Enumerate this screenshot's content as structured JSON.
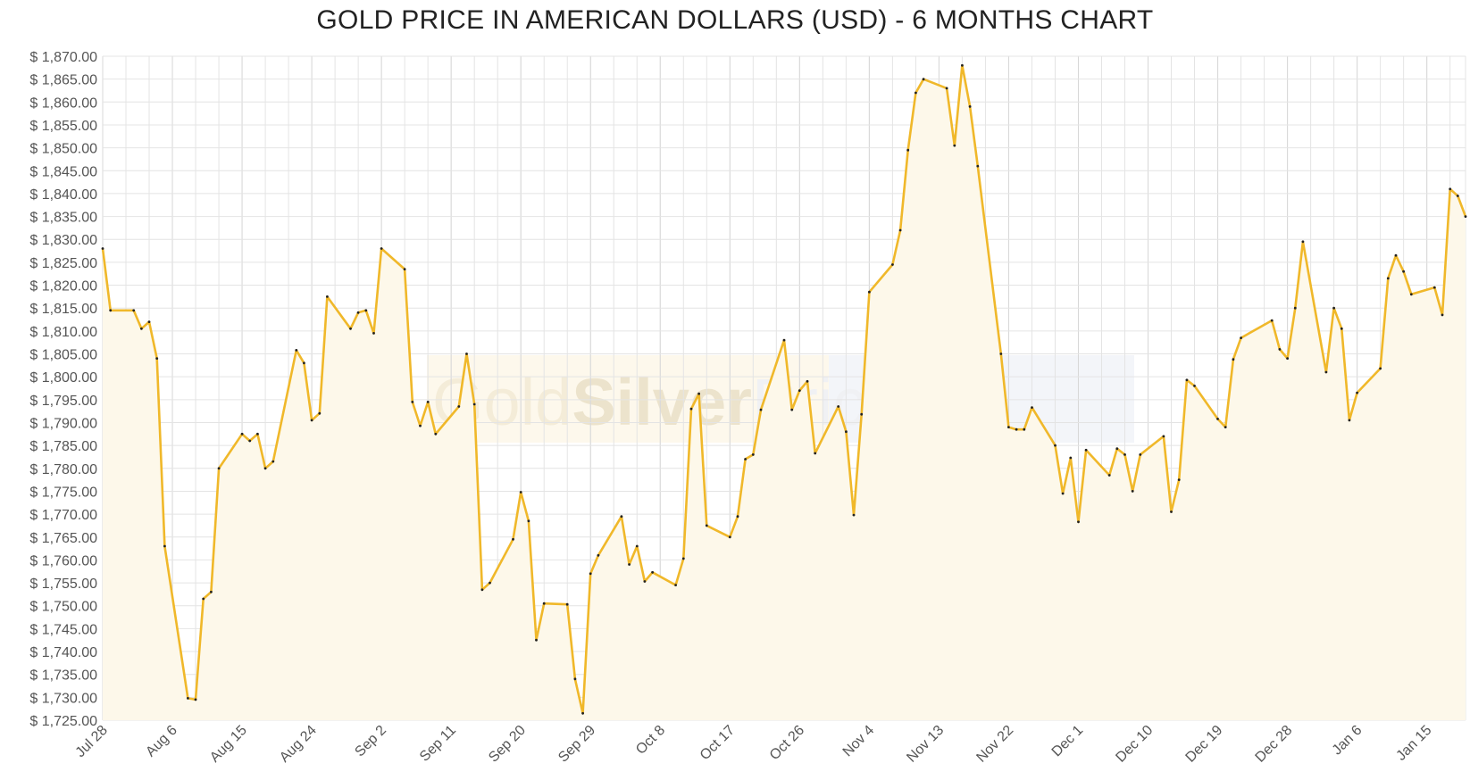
{
  "chart_data": {
    "type": "line",
    "title": "GOLD PRICE IN AMERICAN DOLLARS (USD) - 6 MONTHS CHART",
    "xlabel": "",
    "ylabel": "",
    "ylim": [
      1725,
      1870
    ],
    "y_tick_step": 5,
    "y_tick_prefix": "$ ",
    "x_start": "2021-07-28",
    "x_end": "2022-01-20",
    "x_ticks": [
      {
        "label": "Jul 28",
        "date": "2021-07-28"
      },
      {
        "label": "Aug 6",
        "date": "2021-08-06"
      },
      {
        "label": "Aug 15",
        "date": "2021-08-15"
      },
      {
        "label": "Aug 24",
        "date": "2021-08-24"
      },
      {
        "label": "Sep 2",
        "date": "2021-09-02"
      },
      {
        "label": "Sep 11",
        "date": "2021-09-11"
      },
      {
        "label": "Sep 20",
        "date": "2021-09-20"
      },
      {
        "label": "Sep 29",
        "date": "2021-09-29"
      },
      {
        "label": "Oct 8",
        "date": "2021-10-08"
      },
      {
        "label": "Oct 17",
        "date": "2021-10-17"
      },
      {
        "label": "Oct 26",
        "date": "2021-10-26"
      },
      {
        "label": "Nov 4",
        "date": "2021-11-04"
      },
      {
        "label": "Nov 13",
        "date": "2021-11-13"
      },
      {
        "label": "Nov 22",
        "date": "2021-11-22"
      },
      {
        "label": "Dec 1",
        "date": "2021-12-01"
      },
      {
        "label": "Dec 10",
        "date": "2021-12-10"
      },
      {
        "label": "Dec 19",
        "date": "2021-12-19"
      },
      {
        "label": "Dec 28",
        "date": "2021-12-28"
      },
      {
        "label": "Jan 6",
        "date": "2022-01-06"
      },
      {
        "label": "Jan 15",
        "date": "2022-01-15"
      }
    ],
    "grid": true,
    "legend": "none",
    "series": [
      {
        "color": "#f0b82a",
        "fill": "#fdf8ea",
        "points": [
          {
            "x": "2021-07-28",
            "y": 1828
          },
          {
            "x": "2021-07-29",
            "y": 1814.5
          },
          {
            "x": "2021-08-01",
            "y": 1814.5
          },
          {
            "x": "2021-08-02",
            "y": 1810.5
          },
          {
            "x": "2021-08-03",
            "y": 1812
          },
          {
            "x": "2021-08-04",
            "y": 1804
          },
          {
            "x": "2021-08-05",
            "y": 1763
          },
          {
            "x": "2021-08-08",
            "y": 1729.8
          },
          {
            "x": "2021-08-09",
            "y": 1729.5
          },
          {
            "x": "2021-08-10",
            "y": 1751.5
          },
          {
            "x": "2021-08-11",
            "y": 1753
          },
          {
            "x": "2021-08-12",
            "y": 1780
          },
          {
            "x": "2021-08-15",
            "y": 1787.5
          },
          {
            "x": "2021-08-16",
            "y": 1786
          },
          {
            "x": "2021-08-17",
            "y": 1787.5
          },
          {
            "x": "2021-08-18",
            "y": 1780
          },
          {
            "x": "2021-08-19",
            "y": 1781.5
          },
          {
            "x": "2021-08-22",
            "y": 1805.8
          },
          {
            "x": "2021-08-23",
            "y": 1803
          },
          {
            "x": "2021-08-24",
            "y": 1790.5
          },
          {
            "x": "2021-08-25",
            "y": 1792
          },
          {
            "x": "2021-08-26",
            "y": 1817.5
          },
          {
            "x": "2021-08-29",
            "y": 1810.5
          },
          {
            "x": "2021-08-30",
            "y": 1814
          },
          {
            "x": "2021-08-31",
            "y": 1814.5
          },
          {
            "x": "2021-09-01",
            "y": 1809.5
          },
          {
            "x": "2021-09-02",
            "y": 1828
          },
          {
            "x": "2021-09-05",
            "y": 1823.5
          },
          {
            "x": "2021-09-06",
            "y": 1794.5
          },
          {
            "x": "2021-09-07",
            "y": 1789.3
          },
          {
            "x": "2021-09-08",
            "y": 1794.5
          },
          {
            "x": "2021-09-09",
            "y": 1787.5
          },
          {
            "x": "2021-09-12",
            "y": 1793.5
          },
          {
            "x": "2021-09-13",
            "y": 1805
          },
          {
            "x": "2021-09-14",
            "y": 1794
          },
          {
            "x": "2021-09-15",
            "y": 1753.5
          },
          {
            "x": "2021-09-16",
            "y": 1755
          },
          {
            "x": "2021-09-19",
            "y": 1764.5
          },
          {
            "x": "2021-09-20",
            "y": 1774.8
          },
          {
            "x": "2021-09-21",
            "y": 1768.5
          },
          {
            "x": "2021-09-22",
            "y": 1742.5
          },
          {
            "x": "2021-09-23",
            "y": 1750.5
          },
          {
            "x": "2021-09-26",
            "y": 1750.3
          },
          {
            "x": "2021-09-27",
            "y": 1734
          },
          {
            "x": "2021-09-28",
            "y": 1726.5
          },
          {
            "x": "2021-09-29",
            "y": 1757
          },
          {
            "x": "2021-09-30",
            "y": 1761
          },
          {
            "x": "2021-10-03",
            "y": 1769.5
          },
          {
            "x": "2021-10-04",
            "y": 1759
          },
          {
            "x": "2021-10-05",
            "y": 1763
          },
          {
            "x": "2021-10-06",
            "y": 1755.3
          },
          {
            "x": "2021-10-07",
            "y": 1757.3
          },
          {
            "x": "2021-10-10",
            "y": 1754.5
          },
          {
            "x": "2021-10-11",
            "y": 1760.3
          },
          {
            "x": "2021-10-12",
            "y": 1793
          },
          {
            "x": "2021-10-13",
            "y": 1796.3
          },
          {
            "x": "2021-10-14",
            "y": 1767.5
          },
          {
            "x": "2021-10-17",
            "y": 1765
          },
          {
            "x": "2021-10-18",
            "y": 1769.5
          },
          {
            "x": "2021-10-19",
            "y": 1782
          },
          {
            "x": "2021-10-20",
            "y": 1783
          },
          {
            "x": "2021-10-21",
            "y": 1792.8
          },
          {
            "x": "2021-10-24",
            "y": 1808
          },
          {
            "x": "2021-10-25",
            "y": 1792.8
          },
          {
            "x": "2021-10-26",
            "y": 1797
          },
          {
            "x": "2021-10-27",
            "y": 1799
          },
          {
            "x": "2021-10-28",
            "y": 1783.3
          },
          {
            "x": "2021-10-31",
            "y": 1793.5
          },
          {
            "x": "2021-11-01",
            "y": 1788
          },
          {
            "x": "2021-11-02",
            "y": 1769.8
          },
          {
            "x": "2021-11-03",
            "y": 1791.8
          },
          {
            "x": "2021-11-04",
            "y": 1818.5
          },
          {
            "x": "2021-11-07",
            "y": 1824.5
          },
          {
            "x": "2021-11-08",
            "y": 1832
          },
          {
            "x": "2021-11-09",
            "y": 1849.5
          },
          {
            "x": "2021-11-10",
            "y": 1862
          },
          {
            "x": "2021-11-11",
            "y": 1865
          },
          {
            "x": "2021-11-14",
            "y": 1863
          },
          {
            "x": "2021-11-15",
            "y": 1850.5
          },
          {
            "x": "2021-11-16",
            "y": 1868
          },
          {
            "x": "2021-11-17",
            "y": 1859
          },
          {
            "x": "2021-11-18",
            "y": 1846
          },
          {
            "x": "2021-11-21",
            "y": 1805
          },
          {
            "x": "2021-11-22",
            "y": 1789
          },
          {
            "x": "2021-11-23",
            "y": 1788.5
          },
          {
            "x": "2021-11-24",
            "y": 1788.5
          },
          {
            "x": "2021-11-25",
            "y": 1793.3
          },
          {
            "x": "2021-11-28",
            "y": 1785
          },
          {
            "x": "2021-11-29",
            "y": 1774.5
          },
          {
            "x": "2021-11-30",
            "y": 1782.3
          },
          {
            "x": "2021-12-01",
            "y": 1768.3
          },
          {
            "x": "2021-12-02",
            "y": 1784
          },
          {
            "x": "2021-12-05",
            "y": 1778.5
          },
          {
            "x": "2021-12-06",
            "y": 1784.3
          },
          {
            "x": "2021-12-07",
            "y": 1783
          },
          {
            "x": "2021-12-08",
            "y": 1775
          },
          {
            "x": "2021-12-09",
            "y": 1783
          },
          {
            "x": "2021-12-12",
            "y": 1787
          },
          {
            "x": "2021-12-13",
            "y": 1770.5
          },
          {
            "x": "2021-12-14",
            "y": 1777.5
          },
          {
            "x": "2021-12-15",
            "y": 1799.3
          },
          {
            "x": "2021-12-16",
            "y": 1798
          },
          {
            "x": "2021-12-19",
            "y": 1790.8
          },
          {
            "x": "2021-12-20",
            "y": 1789
          },
          {
            "x": "2021-12-21",
            "y": 1803.8
          },
          {
            "x": "2021-12-22",
            "y": 1808.5
          },
          {
            "x": "2021-12-26",
            "y": 1812.3
          },
          {
            "x": "2021-12-27",
            "y": 1806
          },
          {
            "x": "2021-12-28",
            "y": 1804
          },
          {
            "x": "2021-12-29",
            "y": 1815
          },
          {
            "x": "2021-12-30",
            "y": 1829.5
          },
          {
            "x": "2022-01-02",
            "y": 1801
          },
          {
            "x": "2022-01-03",
            "y": 1815
          },
          {
            "x": "2022-01-04",
            "y": 1810.5
          },
          {
            "x": "2022-01-05",
            "y": 1790.5
          },
          {
            "x": "2022-01-06",
            "y": 1796.5
          },
          {
            "x": "2022-01-09",
            "y": 1801.8
          },
          {
            "x": "2022-01-10",
            "y": 1821.5
          },
          {
            "x": "2022-01-11",
            "y": 1826.5
          },
          {
            "x": "2022-01-12",
            "y": 1823
          },
          {
            "x": "2022-01-13",
            "y": 1818
          },
          {
            "x": "2022-01-16",
            "y": 1819.5
          },
          {
            "x": "2022-01-17",
            "y": 1813.5
          },
          {
            "x": "2022-01-18",
            "y": 1841
          },
          {
            "x": "2022-01-19",
            "y": 1839.5
          },
          {
            "x": "2022-01-20",
            "y": 1835
          }
        ]
      }
    ]
  }
}
